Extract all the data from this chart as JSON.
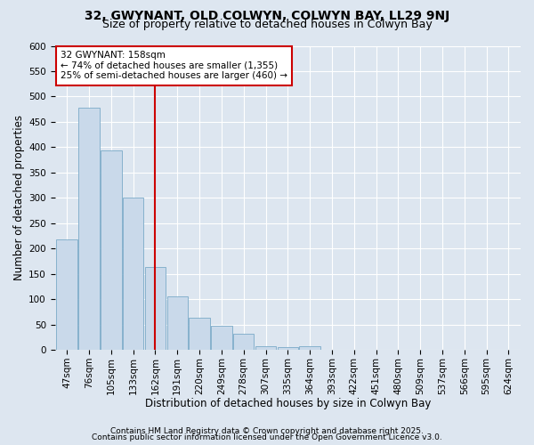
{
  "title1": "32, GWYNANT, OLD COLWYN, COLWYN BAY, LL29 9NJ",
  "title2": "Size of property relative to detached houses in Colwyn Bay",
  "xlabel": "Distribution of detached houses by size in Colwyn Bay",
  "ylabel": "Number of detached properties",
  "categories": [
    "47sqm",
    "76sqm",
    "105sqm",
    "133sqm",
    "162sqm",
    "191sqm",
    "220sqm",
    "249sqm",
    "278sqm",
    "307sqm",
    "335sqm",
    "364sqm",
    "393sqm",
    "422sqm",
    "451sqm",
    "480sqm",
    "509sqm",
    "537sqm",
    "566sqm",
    "595sqm",
    "624sqm"
  ],
  "values": [
    218,
    478,
    393,
    301,
    163,
    105,
    63,
    47,
    32,
    7,
    5,
    7,
    0,
    0,
    0,
    0,
    0,
    0,
    0,
    0,
    0
  ],
  "bar_color": "#c9d9ea",
  "bar_edge_color": "#7aaac8",
  "vline_x_index": 4,
  "vline_color": "#cc0000",
  "annotation_text": "32 GWYNANT: 158sqm\n← 74% of detached houses are smaller (1,355)\n25% of semi-detached houses are larger (460) →",
  "annotation_box_facecolor": "#ffffff",
  "annotation_box_edgecolor": "#cc0000",
  "ylim": [
    0,
    600
  ],
  "yticks": [
    0,
    50,
    100,
    150,
    200,
    250,
    300,
    350,
    400,
    450,
    500,
    550,
    600
  ],
  "footer1": "Contains HM Land Registry data © Crown copyright and database right 2025.",
  "footer2": "Contains public sector information licensed under the Open Government Licence v3.0.",
  "background_color": "#dde6f0",
  "plot_background_color": "#dde6f0",
  "title1_fontsize": 10,
  "title2_fontsize": 9,
  "xlabel_fontsize": 8.5,
  "ylabel_fontsize": 8.5,
  "tick_fontsize": 7.5,
  "footer_fontsize": 6.5,
  "annotation_fontsize": 7.5,
  "grid_color": "#ffffff"
}
